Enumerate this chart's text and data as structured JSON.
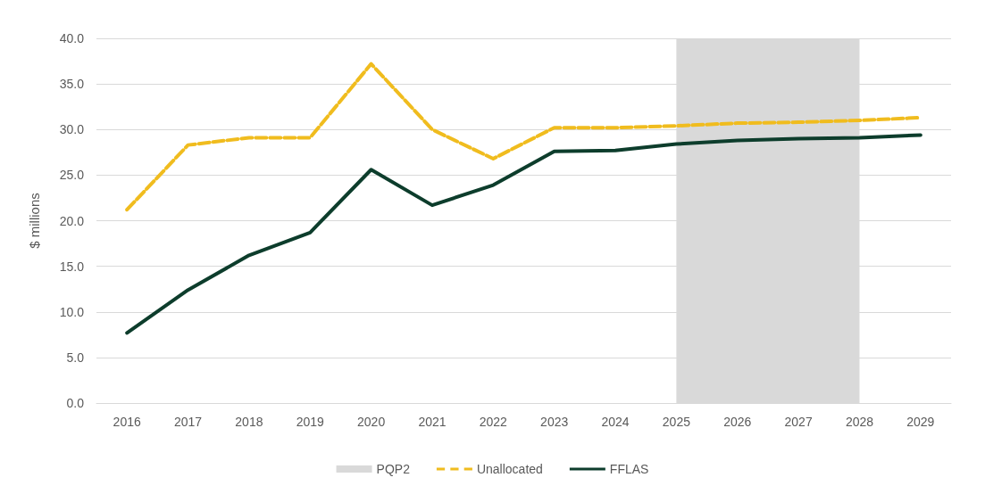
{
  "chart_data": {
    "type": "line",
    "ylabel": "$ millions",
    "categories": [
      "2016",
      "2017",
      "2018",
      "2019",
      "2020",
      "2021",
      "2022",
      "2023",
      "2024",
      "2025",
      "2026",
      "2027",
      "2028",
      "2029"
    ],
    "series": [
      {
        "name": "Unallocated",
        "color": "#f0bc1e",
        "line_style": "dashed",
        "values": [
          21.2,
          28.3,
          29.1,
          29.1,
          37.2,
          30.0,
          26.8,
          30.2,
          30.2,
          30.4,
          30.7,
          30.8,
          31.0,
          31.3
        ]
      },
      {
        "name": "FFLAS",
        "color": "#0d3d2c",
        "line_style": "solid",
        "values": [
          7.7,
          12.4,
          16.2,
          18.7,
          25.6,
          21.7,
          23.9,
          27.6,
          27.7,
          28.4,
          28.8,
          29.0,
          29.1,
          29.4
        ]
      }
    ],
    "bands": [
      {
        "axis": "x",
        "from": "2025",
        "to": "2028",
        "label": "PQP2",
        "color": "#d9d9d9"
      }
    ],
    "ylim": [
      0,
      40
    ],
    "yticks": [
      {
        "value": 0,
        "label": "0.0"
      },
      {
        "value": 5,
        "label": "5.0"
      },
      {
        "value": 10,
        "label": "10.0"
      },
      {
        "value": 15,
        "label": "15.0"
      },
      {
        "value": 20,
        "label": "20.0"
      },
      {
        "value": 25,
        "label": "25.0"
      },
      {
        "value": 30,
        "label": "30.0"
      },
      {
        "value": 35,
        "label": "35.0"
      },
      {
        "value": 40,
        "label": "40.0"
      }
    ],
    "grid": "y",
    "legend": "bottom",
    "marker": "none"
  }
}
